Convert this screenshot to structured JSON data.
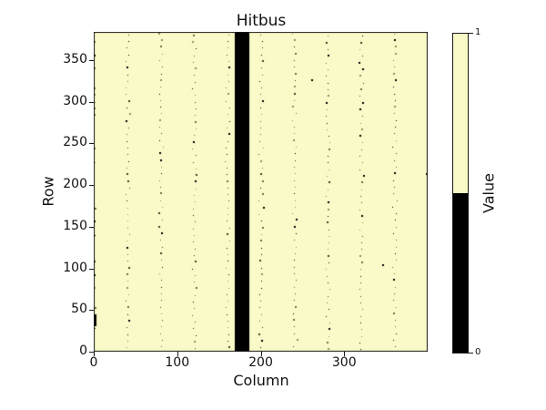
{
  "chart_data": {
    "type": "heatmap",
    "title": "Hitbus",
    "xlabel": "Column",
    "ylabel": "Row",
    "xlim": [
      0,
      400
    ],
    "ylim": [
      0,
      384
    ],
    "xticks": [
      0,
      100,
      200,
      300
    ],
    "yticks": [
      0,
      50,
      100,
      150,
      200,
      250,
      300,
      350
    ],
    "grid": false,
    "legend": "none",
    "main_region_value": 1,
    "colorbar": {
      "label": "Value",
      "tick_top": "1",
      "tick_bottom": "0",
      "black_fraction_bottom": 0.5
    },
    "colors": {
      "value_1": "#fafac8",
      "value_0": "#000000",
      "frame": "#1a1a1a",
      "figure_bg": "#ffffff",
      "noise_dots": [
        "#000000",
        "#3d3d26",
        "#6b6b45",
        "#90905e"
      ]
    },
    "black_band": {
      "value": 0,
      "col_start": 169,
      "col_end": 186
    },
    "noise_pattern": {
      "description": "sparse dark single-pixel dots forming faint wavy vertical dotted lines",
      "columns": [
        0,
        40,
        80,
        120,
        160,
        200,
        240,
        280,
        320,
        360
      ],
      "row_spacing": 8,
      "jitter_cols": 2
    },
    "outlier_pixels": [
      {
        "col": 262,
        "row": 326
      },
      {
        "col": 347,
        "row": 104
      },
      {
        "col": 399,
        "row": 213
      }
    ],
    "edge_cluster": {
      "col": 0,
      "row_start": 31,
      "row_end": 45
    }
  }
}
